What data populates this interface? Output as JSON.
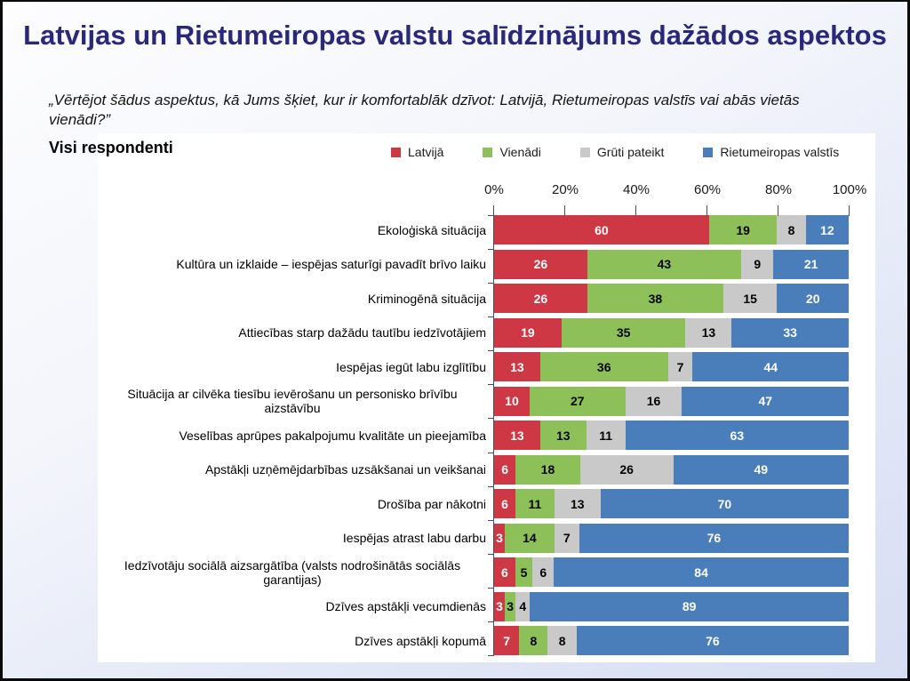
{
  "slide": {
    "title": "Latvijas un Rietumeiropas valstu salīdzinājums dažādos aspektos",
    "title_color": "#2a2879",
    "subtitle": "„Vērtējot šādus aspektus, kā Jums šķiet, kur ir komfortablāk dzīvot: Latvijā, Rietumeiropas valstīs vai abās vietās vienādi?”",
    "audience_label": "Visi respondenti"
  },
  "legend": {
    "items": [
      {
        "key": "latvija",
        "label": "Latvijā",
        "color": "#ce3844"
      },
      {
        "key": "vienadi",
        "label": "Vienādi",
        "color": "#8ec05a"
      },
      {
        "key": "gruti-pateikt",
        "label": "Grūti pateikt",
        "color": "#c9c9c9"
      },
      {
        "key": "rietumeiropas-valstis",
        "label": "Rietumeiropas valstīs",
        "color": "#4a7ebb"
      }
    ]
  },
  "chart_data": {
    "type": "bar",
    "variant": "horizontal-stacked",
    "stacked": true,
    "unit": "%",
    "xlim": [
      0,
      100
    ],
    "x_ticks": [
      "0%",
      "20%",
      "40%",
      "60%",
      "80%",
      "100%"
    ],
    "grid": false,
    "legend_position": "top",
    "categories": [
      "Ekoloģiskā situācija",
      "Kultūra un izklaide – iespējas saturīgi pavadīt brīvo laiku",
      "Kriminogēnā situācija",
      "Attiecības starp dažādu tautību iedzīvotājiem",
      "Iespējas iegūt labu izglītību",
      "Situācija ar cilvēka tiesību ievērošanu un personisko brīvību aizstāvību",
      "Veselības aprūpes pakalpojumu kvalitāte un pieejamība",
      "Apstākļi uzņēmējdarbības uzsākšanai un veikšanai",
      "Drošība par nākotni",
      "Iespējas atrast labu darbu",
      "Iedzīvotāju sociālā aizsargātība (valsts nodrošinātās sociālās garantijas)",
      "Dzīves apstākļi vecumdienās",
      "Dzīves apstākļi kopumā"
    ],
    "series": [
      {
        "key": "latvija",
        "name": "Latvijā",
        "color": "#ce3844",
        "value_text_color": "#ffffff",
        "values": [
          60,
          26,
          26,
          19,
          13,
          10,
          13,
          6,
          6,
          3,
          6,
          3,
          7
        ]
      },
      {
        "key": "vienadi",
        "name": "Vienādi",
        "color": "#8ec05a",
        "value_text_color": "#000000",
        "values": [
          19,
          43,
          38,
          35,
          36,
          27,
          13,
          18,
          11,
          14,
          5,
          3,
          8
        ]
      },
      {
        "key": "gruti-pateikt",
        "name": "Grūti pateikt",
        "color": "#c9c9c9",
        "value_text_color": "#000000",
        "values": [
          8,
          9,
          15,
          13,
          7,
          16,
          11,
          26,
          13,
          7,
          6,
          4,
          8
        ]
      },
      {
        "key": "rietumeiropas-valstis",
        "name": "Rietumeiropas valstīs",
        "color": "#4a7ebb",
        "value_text_color": "#ffffff",
        "values": [
          12,
          21,
          20,
          33,
          44,
          47,
          63,
          49,
          70,
          76,
          84,
          89,
          76
        ]
      }
    ]
  }
}
